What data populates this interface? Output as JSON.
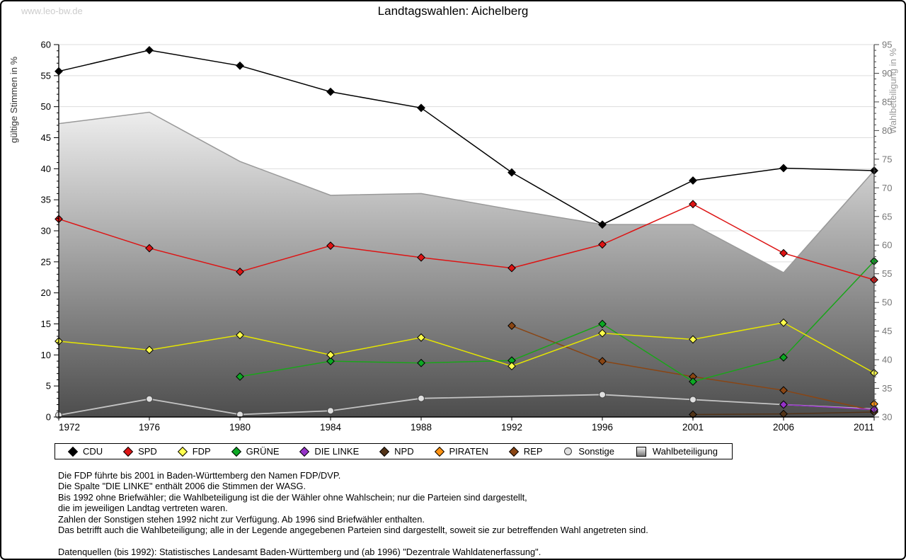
{
  "header": {
    "title": "Landtagswahlen: Aichelberg",
    "watermark": "www.leo-bw.de"
  },
  "chart_data": {
    "type": "line",
    "title": "Landtagswahlen: Aichelberg",
    "x": [
      1972,
      1976,
      1980,
      1984,
      1988,
      1992,
      1996,
      2001,
      2006,
      2011
    ],
    "left_axis": {
      "label": "gültige Stimmen in %",
      "min": 0,
      "max": 60,
      "step": 5
    },
    "right_axis": {
      "label": "Wahlbeteiligung in %",
      "min": 30,
      "max": 95,
      "step": 5
    },
    "grid": true,
    "legend_position": "bottom",
    "series": [
      {
        "name": "CDU",
        "axis": "left",
        "marker": "diamond",
        "color": "#000000",
        "fill": "#000000",
        "values": [
          55.7,
          59.1,
          56.6,
          52.4,
          49.8,
          39.4,
          31.0,
          38.1,
          40.1,
          39.7
        ]
      },
      {
        "name": "SPD",
        "axis": "left",
        "marker": "diamond",
        "color": "#dd1414",
        "fill": "#dd1414",
        "values": [
          31.9,
          27.2,
          23.4,
          27.6,
          25.7,
          24.0,
          27.8,
          34.3,
          26.4,
          22.1
        ]
      },
      {
        "name": "FDP",
        "axis": "left",
        "marker": "diamond",
        "color": "#e6e600",
        "fill": "#ffff4d",
        "values": [
          12.2,
          10.8,
          13.2,
          10.0,
          12.8,
          8.2,
          13.5,
          12.5,
          15.2,
          7.1
        ]
      },
      {
        "name": "GRÜNE",
        "axis": "left",
        "marker": "diamond",
        "color": "#1aa51a",
        "fill": "#0ca823",
        "values": [
          null,
          null,
          6.5,
          9.0,
          8.7,
          9.1,
          15.0,
          5.7,
          9.6,
          25.1
        ]
      },
      {
        "name": "DIE LINKE",
        "axis": "left",
        "marker": "diamond",
        "color": "#9632c8",
        "fill": "#9632c8",
        "values": [
          null,
          null,
          null,
          null,
          null,
          null,
          null,
          null,
          2.0,
          1.2
        ]
      },
      {
        "name": "NPD",
        "axis": "left",
        "marker": "diamond",
        "color": "#523317",
        "fill": "#523317",
        "values": [
          null,
          null,
          null,
          null,
          null,
          null,
          null,
          0.4,
          0.5,
          0.8
        ]
      },
      {
        "name": "PIRATEN",
        "axis": "left",
        "marker": "diamond",
        "color": "#ff9211",
        "fill": "#ff9211",
        "values": [
          null,
          null,
          null,
          null,
          null,
          null,
          null,
          null,
          null,
          2.1
        ]
      },
      {
        "name": "REP",
        "axis": "left",
        "marker": "diamond",
        "color": "#8a4513",
        "fill": "#8a4513",
        "values": [
          null,
          null,
          null,
          null,
          null,
          14.7,
          9.0,
          6.5,
          4.3,
          1.0
        ]
      },
      {
        "name": "Sonstige",
        "axis": "left",
        "marker": "circle",
        "color": "#c4c4c4",
        "fill": "#e0e0e0",
        "values": [
          0.3,
          2.9,
          0.4,
          1.0,
          3.0,
          null,
          3.6,
          2.8,
          2.0,
          1.3
        ]
      },
      {
        "name": "Wahlbeteiligung",
        "axis": "right",
        "marker": "area",
        "color": "#999999",
        "gradient": [
          "#ffffff",
          "#4d4d4d"
        ],
        "values": [
          81.2,
          83.2,
          74.6,
          68.7,
          69.0,
          66.2,
          63.6,
          63.6,
          55.2,
          73.0
        ]
      }
    ]
  },
  "footnotes": [
    "Die FDP führte bis 2001 in Baden-Württemberg den Namen FDP/DVP.",
    "Die Spalte \"DIE LINKE\" enthält 2006 die Stimmen der WASG.",
    "Bis 1992 ohne Briefwähler; die Wahlbeteiligung ist die der Wähler ohne Wahlschein; nur die Parteien sind dargestellt,",
    "die im jeweiligen Landtag vertreten waren.",
    "Zahlen der Sonstigen stehen 1992 nicht zur Verfügung. Ab 1996 sind Briefwähler enthalten.",
    "Das betrifft auch die Wahlbeteiligung; alle in der Legende angegebenen Parteien sind dargestellt, soweit sie zur betreffenden Wahl angetreten sind.",
    "",
    "Datenquellen (bis 1992): Statistisches Landesamt Baden-Württemberg und (ab 1996) \"Dezentrale Wahldatenerfassung\"."
  ]
}
